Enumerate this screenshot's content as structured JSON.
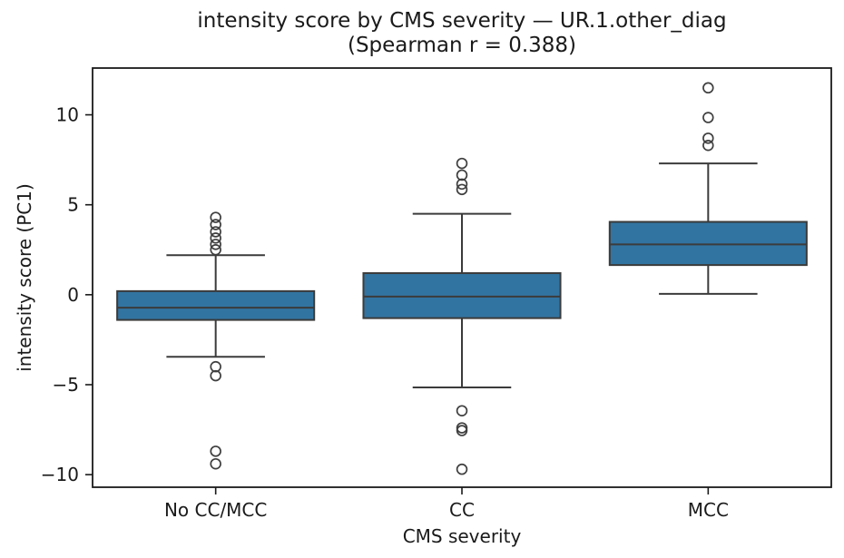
{
  "figure": {
    "title_line1": "intensity score by CMS severity — UR.1.other_diag",
    "title_line2": "(Spearman r = 0.388)",
    "background": "#ffffff"
  },
  "chart_data": {
    "type": "box",
    "title": "intensity score by CMS severity — UR.1.other_diag (Spearman r = 0.388)",
    "xlabel": "CMS severity",
    "ylabel": "intensity score (PC1)",
    "categories": [
      "No CC/MCC",
      "CC",
      "MCC"
    ],
    "ylim": [
      -10.7,
      12.6
    ],
    "yticks": [
      -10,
      -5,
      0,
      5,
      10
    ],
    "ytick_labels": [
      "−10",
      "−5",
      "0",
      "5",
      "10"
    ],
    "grid": false,
    "legend": null,
    "boxes": [
      {
        "category": "No CC/MCC",
        "whisker_low": -3.45,
        "q1": -1.4,
        "median": -0.72,
        "q3": 0.2,
        "whisker_high": 2.2,
        "outliers": [
          4.3,
          3.9,
          3.5,
          3.15,
          2.8,
          2.5,
          -4.0,
          -4.5,
          -8.7,
          -9.4
        ]
      },
      {
        "category": "CC",
        "whisker_low": -5.15,
        "q1": -1.3,
        "median": -0.1,
        "q3": 1.2,
        "whisker_high": 4.5,
        "outliers": [
          7.3,
          6.65,
          6.15,
          5.85,
          -6.45,
          -7.4,
          -7.55,
          -9.7
        ]
      },
      {
        "category": "MCC",
        "whisker_low": 0.05,
        "q1": 1.65,
        "median": 2.8,
        "q3": 4.05,
        "whisker_high": 7.3,
        "outliers": [
          11.5,
          9.85,
          8.7,
          8.3
        ]
      }
    ],
    "colors": {
      "box_fill": "#3274a1",
      "box_edge": "#3b3b3b",
      "whisker": "#3b3b3b",
      "median": "#3b3b3b",
      "outlier_edge": "#3f3f3f",
      "spine": "#1a1a1a",
      "text": "#1a1a1a"
    }
  }
}
